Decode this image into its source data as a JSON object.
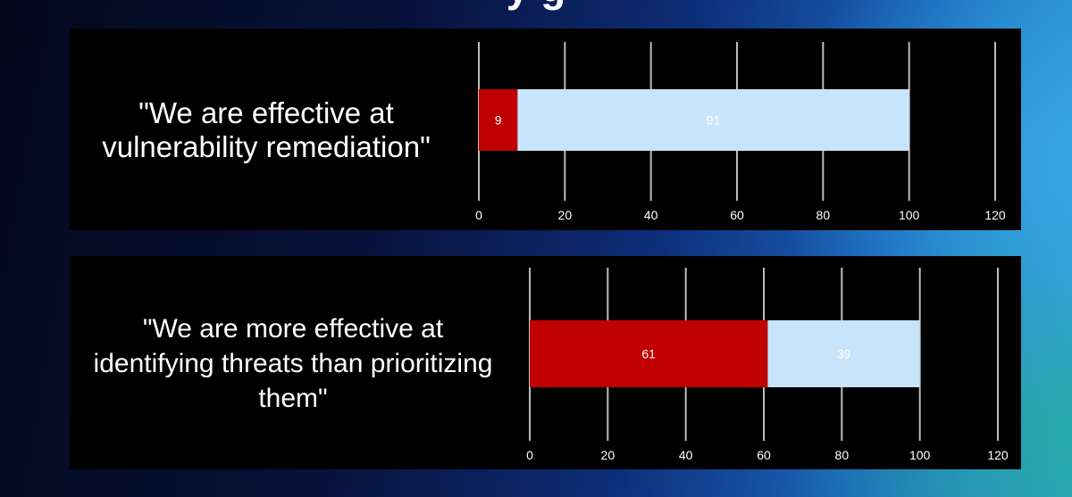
{
  "header": {
    "title_fragment": "y g"
  },
  "chart_data": [
    {
      "type": "bar",
      "orientation": "horizontal",
      "stacked": true,
      "statement": "\"We are effective at vulnerability remediation\"",
      "statement_lines": [
        "\"We are effective at",
        "vulnerability remediation\""
      ],
      "series": [
        {
          "values": [
            9
          ],
          "color": "#c00000"
        },
        {
          "values": [
            91
          ],
          "color": "#c8e4fa"
        }
      ],
      "xlim": [
        0,
        120
      ],
      "xticks": [
        0,
        20,
        40,
        60,
        80,
        100,
        120
      ],
      "grid": true
    },
    {
      "type": "bar",
      "orientation": "horizontal",
      "stacked": true,
      "statement": "\"We are more effective at identifying threats than prioritizing them\"",
      "statement_lines": [
        "\"We are more effective at",
        "identifying threats than prioritizing",
        "them\""
      ],
      "series": [
        {
          "values": [
            61
          ],
          "color": "#c00000"
        },
        {
          "values": [
            39
          ],
          "color": "#c8e4fa"
        }
      ],
      "xlim": [
        0,
        120
      ],
      "xticks": [
        0,
        20,
        40,
        60,
        80,
        100,
        120
      ],
      "grid": true
    }
  ]
}
